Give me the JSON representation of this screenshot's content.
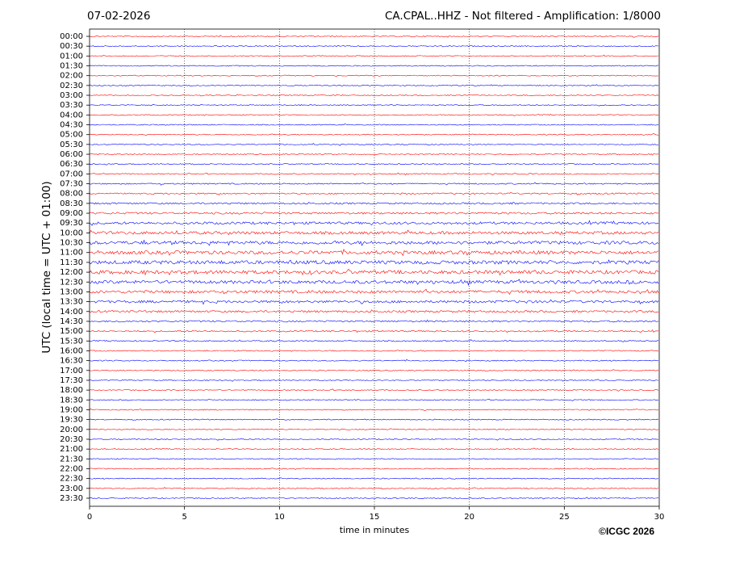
{
  "chart_data": {
    "type": "helicorder",
    "date": "07-02-2026",
    "title": "CA.CPAL..HHZ - Not filtered - Amplification: 1/8000",
    "xlabel": "time in minutes",
    "ylabel": "UTC (local time = UTC + 01:00)",
    "credit": "©ICGC 2026",
    "categories": [
      "00:00",
      "00:30",
      "01:00",
      "01:30",
      "02:00",
      "02:30",
      "03:00",
      "03:30",
      "04:00",
      "04:30",
      "05:00",
      "05:30",
      "06:00",
      "06:30",
      "07:00",
      "07:30",
      "08:00",
      "08:30",
      "09:00",
      "09:30",
      "10:00",
      "10:30",
      "11:00",
      "11:30",
      "12:00",
      "12:30",
      "13:00",
      "13:30",
      "14:00",
      "14:30",
      "15:00",
      "15:30",
      "16:00",
      "16:30",
      "17:00",
      "17:30",
      "18:00",
      "18:30",
      "19:00",
      "19:30",
      "20:00",
      "20:30",
      "21:00",
      "21:30",
      "22:00",
      "22:30",
      "23:00",
      "23:30"
    ],
    "colors": [
      "#ff0000",
      "#0000ff"
    ],
    "xlim": [
      0,
      30
    ],
    "xticks": [
      0,
      5,
      10,
      15,
      20,
      25,
      30
    ],
    "grid": true
  }
}
